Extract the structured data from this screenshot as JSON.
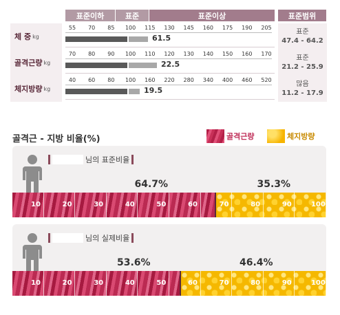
{
  "header": {
    "below": "표준이하",
    "standard": "표준",
    "above": "표준이상",
    "range": "표준범위"
  },
  "measurements": [
    {
      "label": "체 중",
      "unit": "kg",
      "ticks": [
        "55",
        "70",
        "85",
        "100",
        "115",
        "130",
        "145",
        "160",
        "175",
        "190",
        "205"
      ],
      "value": "61.5",
      "value_fraction": 0.48,
      "range_status": "표준",
      "range_value": "47.4 - 64.2"
    },
    {
      "label": "골격근량",
      "unit": "kg",
      "ticks": [
        "70",
        "80",
        "90",
        "100",
        "110",
        "120",
        "130",
        "140",
        "150",
        "160",
        "170"
      ],
      "value": "22.5",
      "value_fraction": 0.53,
      "range_status": "표준",
      "range_value": "21.2 - 25.9"
    },
    {
      "label": "체지방량",
      "unit": "kg",
      "ticks": [
        "40",
        "60",
        "80",
        "100",
        "160",
        "220",
        "280",
        "340",
        "400",
        "460",
        "520"
      ],
      "value": "19.5",
      "value_fraction": 0.43,
      "range_status": "많음",
      "range_value": "11.2 - 17.9"
    }
  ],
  "ratio_section": {
    "title": "골격근 - 지방 비율(%)",
    "legend_muscle": "골격근량",
    "legend_fat": "체지방량",
    "colors": {
      "muscle": "#c73058",
      "fat": "#f5b800"
    },
    "panels": [
      {
        "name_suffix": "님의 표준비율",
        "muscle_pct": 64.7,
        "fat_pct": 35.3,
        "muscle_label": "64.7%",
        "fat_label": "35.3%"
      },
      {
        "name_suffix": "님의 실제비율",
        "muscle_pct": 53.6,
        "fat_pct": 46.4,
        "muscle_label": "53.6%",
        "fat_label": "46.4%"
      }
    ],
    "scale": [
      "10",
      "20",
      "30",
      "40",
      "50",
      "60",
      "70",
      "80",
      "90",
      "100"
    ]
  }
}
